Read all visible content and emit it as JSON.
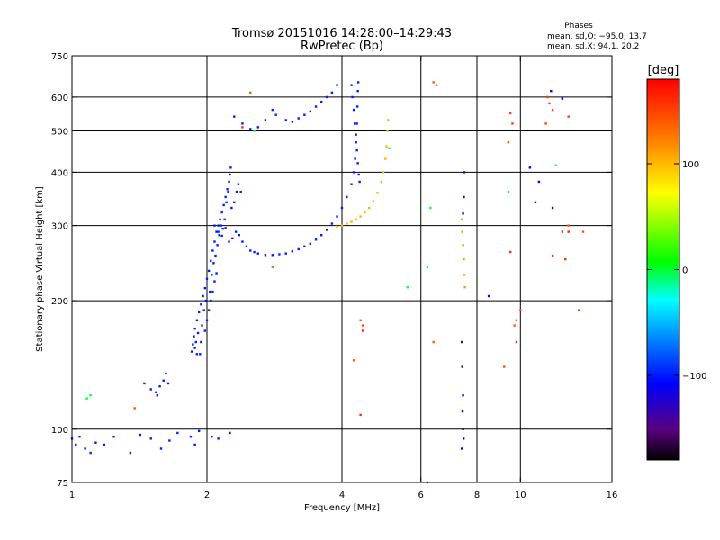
{
  "chart_data": {
    "type": "scatter",
    "title": "Tromsø 20151016 14:28:00–14:29:43",
    "subtitle": "RwPretec (Bp)",
    "xlabel": "Frequency [MHz]",
    "ylabel": "Stationary phase Virtual Height [km]",
    "x_scale": "log",
    "y_scale": "log",
    "xlim": [
      1,
      16
    ],
    "ylim": [
      75,
      750
    ],
    "xticks": [
      1,
      2,
      4,
      6,
      8,
      10,
      16
    ],
    "xtick_labels": [
      "1",
      "2",
      "4",
      "6",
      "8",
      "10",
      "16"
    ],
    "yticks": [
      75,
      100,
      200,
      300,
      400,
      500,
      600,
      750
    ],
    "ytick_labels": [
      "75",
      "100",
      "200",
      "300",
      "400",
      "500",
      "600",
      "750"
    ],
    "x_gridlines": [
      2,
      4,
      6,
      8,
      10
    ],
    "y_gridlines": [
      100,
      200,
      300,
      400,
      500,
      600
    ],
    "grid": true,
    "phase_stats": {
      "heading": "Phases",
      "o_line": "mean, sd,O: −95.0, 13.7",
      "x_line": "mean, sd,X:  94.1, 20.2"
    },
    "colorbar": {
      "label": "[deg]",
      "range": [
        -180,
        180
      ],
      "ticks": [
        100,
        0,
        -100
      ],
      "tick_labels": [
        "100",
        "0",
        "−100"
      ]
    },
    "traces": [
      {
        "phase": -100,
        "points": [
          [
            1.0,
            95
          ],
          [
            1.02,
            92
          ],
          [
            1.04,
            96
          ],
          [
            1.07,
            90
          ],
          [
            1.1,
            88
          ],
          [
            1.13,
            93
          ],
          [
            1.18,
            92
          ],
          [
            1.24,
            96
          ],
          [
            1.35,
            88
          ],
          [
            1.42,
            97
          ],
          [
            1.5,
            95
          ],
          [
            1.58,
            90
          ],
          [
            1.65,
            94
          ],
          [
            1.72,
            98
          ],
          [
            1.84,
            96
          ],
          [
            1.88,
            92
          ],
          [
            1.92,
            99
          ],
          [
            2.05,
            96
          ],
          [
            2.12,
            95
          ],
          [
            2.25,
            98
          ]
        ]
      },
      {
        "phase": -100,
        "points": [
          [
            1.45,
            128
          ],
          [
            1.5,
            124
          ],
          [
            1.54,
            122
          ],
          [
            1.57,
            126
          ],
          [
            1.6,
            130
          ],
          [
            1.62,
            135
          ],
          [
            1.64,
            128
          ],
          [
            1.55,
            120
          ]
        ]
      },
      {
        "phase": -100,
        "points": [
          [
            1.85,
            152
          ],
          [
            1.86,
            158
          ],
          [
            1.87,
            165
          ],
          [
            1.88,
            172
          ],
          [
            1.9,
            180
          ],
          [
            1.92,
            188
          ],
          [
            1.94,
            196
          ],
          [
            1.96,
            205
          ],
          [
            1.98,
            214
          ],
          [
            2.0,
            225
          ],
          [
            2.02,
            235
          ],
          [
            2.04,
            248
          ],
          [
            2.06,
            262
          ],
          [
            2.08,
            275
          ],
          [
            2.1,
            290
          ],
          [
            2.12,
            300
          ],
          [
            2.14,
            310
          ],
          [
            2.16,
            322
          ],
          [
            2.18,
            335
          ],
          [
            2.2,
            350
          ],
          [
            2.22,
            365
          ],
          [
            2.24,
            380
          ],
          [
            2.25,
            395
          ],
          [
            2.26,
            410
          ],
          [
            1.89,
            160
          ],
          [
            1.91,
            168
          ],
          [
            1.93,
            150
          ],
          [
            1.95,
            175
          ],
          [
            1.97,
            190
          ],
          [
            1.99,
            200
          ],
          [
            2.03,
            210
          ],
          [
            2.05,
            230
          ],
          [
            2.07,
            245
          ],
          [
            2.09,
            255
          ],
          [
            2.11,
            270
          ],
          [
            2.13,
            285
          ],
          [
            2.15,
            300
          ],
          [
            2.17,
            295
          ],
          [
            2.19,
            310
          ],
          [
            2.21,
            340
          ],
          [
            2.23,
            360
          ],
          [
            2.27,
            330
          ],
          [
            2.3,
            340
          ],
          [
            2.33,
            360
          ],
          [
            2.35,
            375
          ],
          [
            2.38,
            360
          ],
          [
            1.88,
            155
          ],
          [
            1.9,
            150
          ],
          [
            1.94,
            160
          ],
          [
            1.98,
            170
          ],
          [
            2.0,
            180
          ],
          [
            2.02,
            190
          ],
          [
            2.04,
            200
          ],
          [
            2.06,
            210
          ],
          [
            2.08,
            222
          ],
          [
            2.1,
            232
          ]
        ]
      },
      {
        "phase": -100,
        "points": [
          [
            2.08,
            300
          ],
          [
            2.12,
            290
          ],
          [
            2.16,
            284
          ],
          [
            2.2,
            296
          ],
          [
            2.24,
            275
          ],
          [
            2.28,
            280
          ],
          [
            2.32,
            290
          ],
          [
            2.36,
            285
          ],
          [
            2.4,
            275
          ],
          [
            2.45,
            268
          ],
          [
            2.5,
            262
          ],
          [
            2.55,
            260
          ],
          [
            2.6,
            258
          ],
          [
            2.7,
            256
          ],
          [
            2.8,
            256
          ],
          [
            2.9,
            257
          ],
          [
            3.0,
            258
          ],
          [
            3.1,
            261
          ],
          [
            3.2,
            264
          ],
          [
            3.3,
            268
          ],
          [
            3.4,
            272
          ],
          [
            3.5,
            278
          ],
          [
            3.6,
            285
          ],
          [
            3.7,
            293
          ],
          [
            3.8,
            303
          ],
          [
            3.9,
            315
          ],
          [
            4.0,
            330
          ],
          [
            4.1,
            350
          ],
          [
            4.2,
            375
          ],
          [
            4.25,
            400
          ],
          [
            4.28,
            430
          ],
          [
            4.3,
            470
          ],
          [
            4.32,
            520
          ],
          [
            4.33,
            570
          ],
          [
            4.34,
            620
          ],
          [
            4.35,
            650
          ]
        ]
      },
      {
        "phase": -100,
        "points": [
          [
            4.2,
            640
          ],
          [
            4.22,
            600
          ],
          [
            4.25,
            560
          ],
          [
            4.27,
            520
          ],
          [
            4.3,
            490
          ],
          [
            4.32,
            450
          ],
          [
            4.34,
            420
          ],
          [
            4.36,
            395
          ],
          [
            4.38,
            380
          ]
        ]
      },
      {
        "phase": -100,
        "points": [
          [
            2.3,
            540
          ],
          [
            2.4,
            520
          ],
          [
            2.5,
            505
          ],
          [
            2.6,
            510
          ],
          [
            2.7,
            530
          ],
          [
            2.8,
            560
          ],
          [
            2.85,
            545
          ],
          [
            3.0,
            530
          ],
          [
            3.1,
            525
          ],
          [
            3.2,
            535
          ],
          [
            3.3,
            545
          ],
          [
            3.4,
            555
          ],
          [
            3.5,
            570
          ],
          [
            3.6,
            585
          ],
          [
            3.7,
            600
          ],
          [
            3.8,
            615
          ],
          [
            3.9,
            640
          ]
        ]
      },
      {
        "phase": 100,
        "points": [
          [
            3.9,
            298
          ],
          [
            4.0,
            300
          ],
          [
            4.1,
            303
          ],
          [
            4.2,
            306
          ],
          [
            4.3,
            310
          ],
          [
            4.4,
            315
          ],
          [
            4.5,
            322
          ],
          [
            4.6,
            330
          ],
          [
            4.7,
            342
          ],
          [
            4.8,
            358
          ],
          [
            4.9,
            380
          ],
          [
            4.95,
            400
          ],
          [
            5.0,
            430
          ],
          [
            5.03,
            460
          ],
          [
            5.05,
            500
          ],
          [
            5.07,
            530
          ]
        ]
      },
      {
        "phase": -120,
        "points": [
          [
            7.5,
            400
          ],
          [
            7.48,
            350
          ],
          [
            7.45,
            320
          ],
          [
            7.4,
            160
          ],
          [
            7.42,
            140
          ],
          [
            7.45,
            120
          ],
          [
            7.43,
            110
          ],
          [
            7.45,
            100
          ],
          [
            7.47,
            95
          ],
          [
            7.4,
            90
          ]
        ]
      },
      {
        "phase": 110,
        "points": [
          [
            7.4,
            310
          ],
          [
            7.42,
            290
          ],
          [
            7.45,
            270
          ],
          [
            7.48,
            250
          ],
          [
            7.5,
            230
          ],
          [
            7.52,
            215
          ]
        ]
      },
      {
        "phase": 150,
        "points": [
          [
            9.5,
            550
          ],
          [
            9.6,
            520
          ],
          [
            9.4,
            470
          ],
          [
            11.5,
            600
          ],
          [
            11.6,
            580
          ],
          [
            11.8,
            560
          ],
          [
            11.4,
            520
          ],
          [
            12.8,
            540
          ]
        ]
      },
      {
        "phase": -110,
        "points": [
          [
            10.5,
            410
          ],
          [
            11.0,
            380
          ],
          [
            10.8,
            340
          ],
          [
            11.8,
            330
          ],
          [
            12.4,
            595
          ],
          [
            11.7,
            620
          ],
          [
            8.5,
            205
          ]
        ]
      },
      {
        "phase": 0,
        "points": [
          [
            1.1,
            120
          ],
          [
            1.08,
            118
          ],
          [
            2.55,
            500
          ],
          [
            6.3,
            330
          ],
          [
            6.2,
            240
          ],
          [
            5.6,
            215
          ],
          [
            9.4,
            360
          ],
          [
            12.0,
            415
          ],
          [
            5.1,
            455
          ]
        ]
      },
      {
        "phase": 140,
        "points": [
          [
            6.4,
            650
          ],
          [
            6.5,
            640
          ],
          [
            2.5,
            615
          ],
          [
            4.4,
            180
          ],
          [
            4.45,
            175
          ],
          [
            9.8,
            180
          ],
          [
            9.7,
            175
          ],
          [
            10.0,
            190
          ],
          [
            12.8,
            300
          ],
          [
            13.8,
            290
          ],
          [
            9.2,
            140
          ],
          [
            6.4,
            160
          ],
          [
            1.38,
            112
          ],
          [
            2.8,
            240
          ],
          [
            4.25,
            145
          ]
        ]
      },
      {
        "phase": 160,
        "points": [
          [
            9.8,
            160
          ],
          [
            12.6,
            250
          ],
          [
            13.5,
            190
          ],
          [
            11.8,
            255
          ],
          [
            9.5,
            260
          ],
          [
            12.4,
            290
          ],
          [
            12.8,
            290
          ],
          [
            4.4,
            108
          ],
          [
            4.45,
            170
          ],
          [
            6.2,
            75
          ],
          [
            2.4,
            510
          ]
        ]
      }
    ]
  }
}
